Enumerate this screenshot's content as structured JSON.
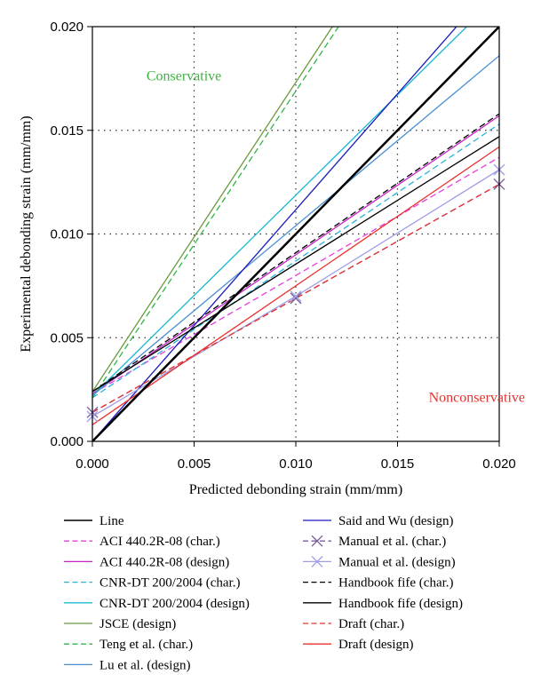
{
  "chart_data": {
    "type": "line",
    "title": "",
    "xlabel": "Predicted debonding strain (mm/mm)",
    "ylabel": "Experimental debonding strain (mm/mm)",
    "xlim": [
      0,
      0.02
    ],
    "ylim": [
      0,
      0.02
    ],
    "xticks": [
      "0.000",
      "0.005",
      "0.010",
      "0.015",
      "0.020"
    ],
    "yticks": [
      "0.000",
      "0.005",
      "0.010",
      "0.015",
      "0.020"
    ],
    "grid": "dotted",
    "legend_placement": "below",
    "annotations": [
      {
        "text": "Conservative",
        "color": "#3cb43c",
        "x": 0.0045,
        "y": 0.0174
      },
      {
        "text": "Nonconservative",
        "color": "#e8312f",
        "x": 0.0189,
        "y": 0.0019
      }
    ],
    "series": [
      {
        "name": "Line",
        "color": "#000000",
        "dash": "solid",
        "width": 2.5,
        "marker": "none",
        "x": [
          0,
          0.02
        ],
        "y": [
          0,
          0.02
        ]
      },
      {
        "name": "ACI 440.2R-08 (char.)",
        "color": "#e83de0",
        "dash": "dashed",
        "width": 1.3,
        "marker": "none",
        "x": [
          0,
          0.02
        ],
        "y": [
          0.0023,
          0.0137
        ]
      },
      {
        "name": "ACI 440.2R-08 (design)",
        "color": "#c822c8",
        "dash": "solid",
        "width": 1.3,
        "marker": "none",
        "x": [
          0,
          0.02
        ],
        "y": [
          0.0023,
          0.0157
        ]
      },
      {
        "name": "CNR-DT 200/2004 (char.)",
        "color": "#2ab3d9",
        "dash": "dashed",
        "width": 1.3,
        "marker": "none",
        "x": [
          0,
          0.02
        ],
        "y": [
          0.0021,
          0.0153
        ]
      },
      {
        "name": "CNR-DT 200/2004 (design)",
        "color": "#19b8d2",
        "dash": "solid",
        "width": 1.3,
        "marker": "none",
        "x": [
          0,
          0.0184
        ],
        "y": [
          0.0022,
          0.02
        ]
      },
      {
        "name": "JSCE (design)",
        "color": "#6b9a3c",
        "dash": "solid",
        "width": 1.3,
        "marker": "none",
        "x": [
          0,
          0.0118
        ],
        "y": [
          0.0024,
          0.02
        ]
      },
      {
        "name": "Teng et al. (char.)",
        "color": "#2fb54a",
        "dash": "dashed",
        "width": 1.3,
        "marker": "none",
        "x": [
          0,
          0.0121
        ],
        "y": [
          0.0021,
          0.02
        ]
      },
      {
        "name": "Lu et al. (design)",
        "color": "#4a8fd3",
        "dash": "solid",
        "width": 1.3,
        "marker": "none",
        "x": [
          0,
          0.02
        ],
        "y": [
          0.0022,
          0.0186
        ]
      },
      {
        "name": "Said and Wu (design)",
        "color": "#1c1cbc",
        "dash": "solid",
        "width": 1.3,
        "marker": "none",
        "x": [
          0,
          0.0179
        ],
        "y": [
          0,
          0.02
        ]
      },
      {
        "name": "Manual et al. (char.)",
        "color": "#7a5c9a",
        "dash": "dashed",
        "width": 1.3,
        "marker": "x",
        "x": [
          0,
          0.01,
          0.02
        ],
        "y": [
          0.0014,
          0.0069,
          0.0124
        ]
      },
      {
        "name": "Manual et al. (design)",
        "color": "#9e9ee6",
        "dash": "solid",
        "width": 1.3,
        "marker": "x",
        "x": [
          0,
          0.01,
          0.02
        ],
        "y": [
          0.0012,
          0.007,
          0.0131
        ]
      },
      {
        "name": "Handbook fife (char.)",
        "color": "#000000",
        "dash": "dashed",
        "width": 1.3,
        "marker": "none",
        "x": [
          0,
          0.02
        ],
        "y": [
          0.0024,
          0.0158
        ]
      },
      {
        "name": "Handbook fife (design)",
        "color": "#000000",
        "dash": "solid",
        "width": 1.3,
        "marker": "none",
        "x": [
          0,
          0.02
        ],
        "y": [
          0.0024,
          0.0147
        ]
      },
      {
        "name": "Draft (char.)",
        "color": "#e8312f",
        "dash": "dashed",
        "width": 1.3,
        "marker": "none",
        "x": [
          0,
          0.02
        ],
        "y": [
          0.0014,
          0.0124
        ]
      },
      {
        "name": "Draft (design)",
        "color": "#e8312f",
        "dash": "solid",
        "width": 1.3,
        "marker": "none",
        "x": [
          0,
          0.02
        ],
        "y": [
          0.0008,
          0.0142
        ]
      }
    ]
  }
}
